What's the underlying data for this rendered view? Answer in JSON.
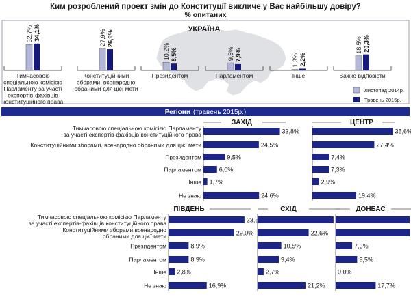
{
  "title": "Ким розроблений проект змін до Конституції викличе у Вас найбільшу довіру?",
  "subtitle": "% опитаних",
  "map_label": "УКРАЇНА",
  "legend": [
    "Листопад 2014р.",
    "Травень 2015р."
  ],
  "regions_title": "Регіони",
  "regions_subtitle": "(травень 2015р.)",
  "colors": {
    "nov2014": "#b3b7d9",
    "may2015": "#151a7a",
    "bar": "#1c2689",
    "map": "#dfe1e5",
    "text": "#1a1a1a"
  },
  "chart_data": [
    {
      "type": "bar",
      "title": "Ким розроблений проект змін до Конституції викличе у Вас найбільшу довіру?",
      "ylabel": "% опитаних",
      "categories": [
        "Тимчасовою спеціальною комісією Парламенту за участі експертів-фахівців конституційного права",
        "Конституційними зборами, всенародно обраними для цієї мети",
        "Президентом",
        "Парламентом",
        "Інше",
        "Важко відповісти"
      ],
      "category_lines": [
        [
          "Тимчасовою",
          "спеціальною комісією",
          "Парламенту за участі",
          "експертів-фахівців",
          "конституційного права"
        ],
        [
          "Конституційними",
          "зборами, всенародно",
          "обраними для цієї мети"
        ],
        [
          "Президентом"
        ],
        [
          "Парламентом"
        ],
        [
          "Інше"
        ],
        [
          "Важко відповісти"
        ]
      ],
      "series": [
        {
          "name": "Листопад 2014р.",
          "values": [
            32.7,
            27.9,
            10.2,
            9.5,
            1.3,
            18.5
          ],
          "labels": [
            "32,7%",
            "27,9%",
            "10,2%",
            "9,5%",
            "1,3%",
            "18,5%"
          ]
        },
        {
          "name": "Травень 2015р.",
          "values": [
            34.1,
            26.9,
            8.5,
            7.9,
            2.2,
            20.3
          ],
          "labels": [
            "34,1%",
            "26,9%",
            "8,5%",
            "7,9%",
            "2,2%",
            "20,3%"
          ]
        }
      ]
    },
    {
      "type": "bar",
      "title": "ЗАХІД",
      "categories": [
        "Тимчасовою спеціальною комісією Парламенту за участі експертів-фахівців конституційного права",
        "Конституційними зборами, всенародно обраними для цієї мети",
        "Президентом",
        "Парламентом",
        "Інше",
        "Не знаю"
      ],
      "category_lines": [
        [
          "Тимчасовою спеціальною комісією Парламенту",
          "за участі експертів-фахівців конституційного права"
        ],
        [
          "Конституційними зборами, всенародно обраними для цієї мети"
        ],
        [
          "Президентом"
        ],
        [
          "Парламентом"
        ],
        [
          "Інше"
        ],
        [
          "Не знаю"
        ]
      ],
      "values": [
        33.8,
        24.5,
        9.5,
        6.0,
        1.7,
        24.6
      ],
      "labels": [
        "33,8%",
        "24,5%",
        "9,5%",
        "6,0%",
        "1,7%",
        "24,6%"
      ]
    },
    {
      "type": "bar",
      "title": "ЦЕНТР",
      "categories": [
        "Тимчасовою спеціальною комісією Парламенту за участі експертів-фахівців конституційного права",
        "Конституційними зборами, всенародно обраними для цієї мети",
        "Президентом",
        "Парламентом",
        "Інше",
        "Не знаю"
      ],
      "values": [
        35.6,
        27.4,
        7.4,
        7.3,
        2.9,
        19.4
      ],
      "labels": [
        "35,6%",
        "27,4%",
        "7,4%",
        "7,3%",
        "2,9%",
        "19,4%"
      ]
    },
    {
      "type": "bar",
      "title": "ПІВДЕНЬ",
      "categories": [
        "Тимчасовою спеціальною комісією Парламенту за участі експертів-фахівців конституційного права",
        "Конституційними зборами, всенародно обраними для цієї мети",
        "Президентом",
        "Парламентом",
        "Інше",
        "Не знаю"
      ],
      "category_lines": [
        [
          "Тимчасовою спеціальною комісією Парламенту",
          "за участі експертів-фахівців конституційного права"
        ],
        [
          "Конституційними зборами,всенародно",
          "обраними для цієї мети"
        ],
        [
          "Президентом"
        ],
        [
          "Парламентом"
        ],
        [
          "Інше"
        ],
        [
          "Не знаю"
        ]
      ],
      "values": [
        33.6,
        29.0,
        8.9,
        8.9,
        2.8,
        16.9
      ],
      "labels": [
        "33,6%",
        "29,0%",
        "8,9%",
        "8,9%",
        "2,8%",
        "16,9%"
      ]
    },
    {
      "type": "bar",
      "title": "СХІД",
      "categories": [
        "Тимчасовою спеціальною комісією Парламенту за участі експертів-фахівців конституційного права",
        "Конституційними зборами, всенародно обраними для цієї мети",
        "Президентом",
        "Парламентом",
        "Інше",
        "Не знаю"
      ],
      "values": [
        33.6,
        22.6,
        10.5,
        9.4,
        2.7,
        21.2
      ],
      "labels": [
        "33,6%",
        "22,6%",
        "10,5%",
        "9,4%",
        "2,7%",
        "21,2%"
      ]
    },
    {
      "type": "bar",
      "title": "ДОНБАС",
      "categories": [
        "Тимчасовою спеціальною комісією Парламенту за участі експертів-фахівців конституційного права",
        "Конституційними зборами, всенародно обраними для цієї мети",
        "Президентом",
        "Парламентом",
        "Інше",
        "Не знаю"
      ],
      "values": [
        32.8,
        32.8,
        7.3,
        9.5,
        0.0,
        17.7
      ],
      "labels": [
        "32,8%",
        "32,8%",
        "7,3%",
        "9,5%",
        "0,0%",
        "17,7%"
      ]
    }
  ]
}
